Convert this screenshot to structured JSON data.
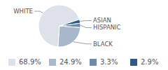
{
  "chart_data": {
    "type": "pie",
    "categories": [
      "WHITE",
      "BLACK",
      "HISPANIC",
      "ASIAN"
    ],
    "values": [
      68.9,
      24.9,
      3.3,
      2.9
    ],
    "value_labels": [
      "68.9%",
      "24.9%",
      "3.3%",
      "2.9%"
    ],
    "colors": [
      "#dde2ea",
      "#a8b7c9",
      "#6d8aa8",
      "#2e5b84"
    ]
  }
}
